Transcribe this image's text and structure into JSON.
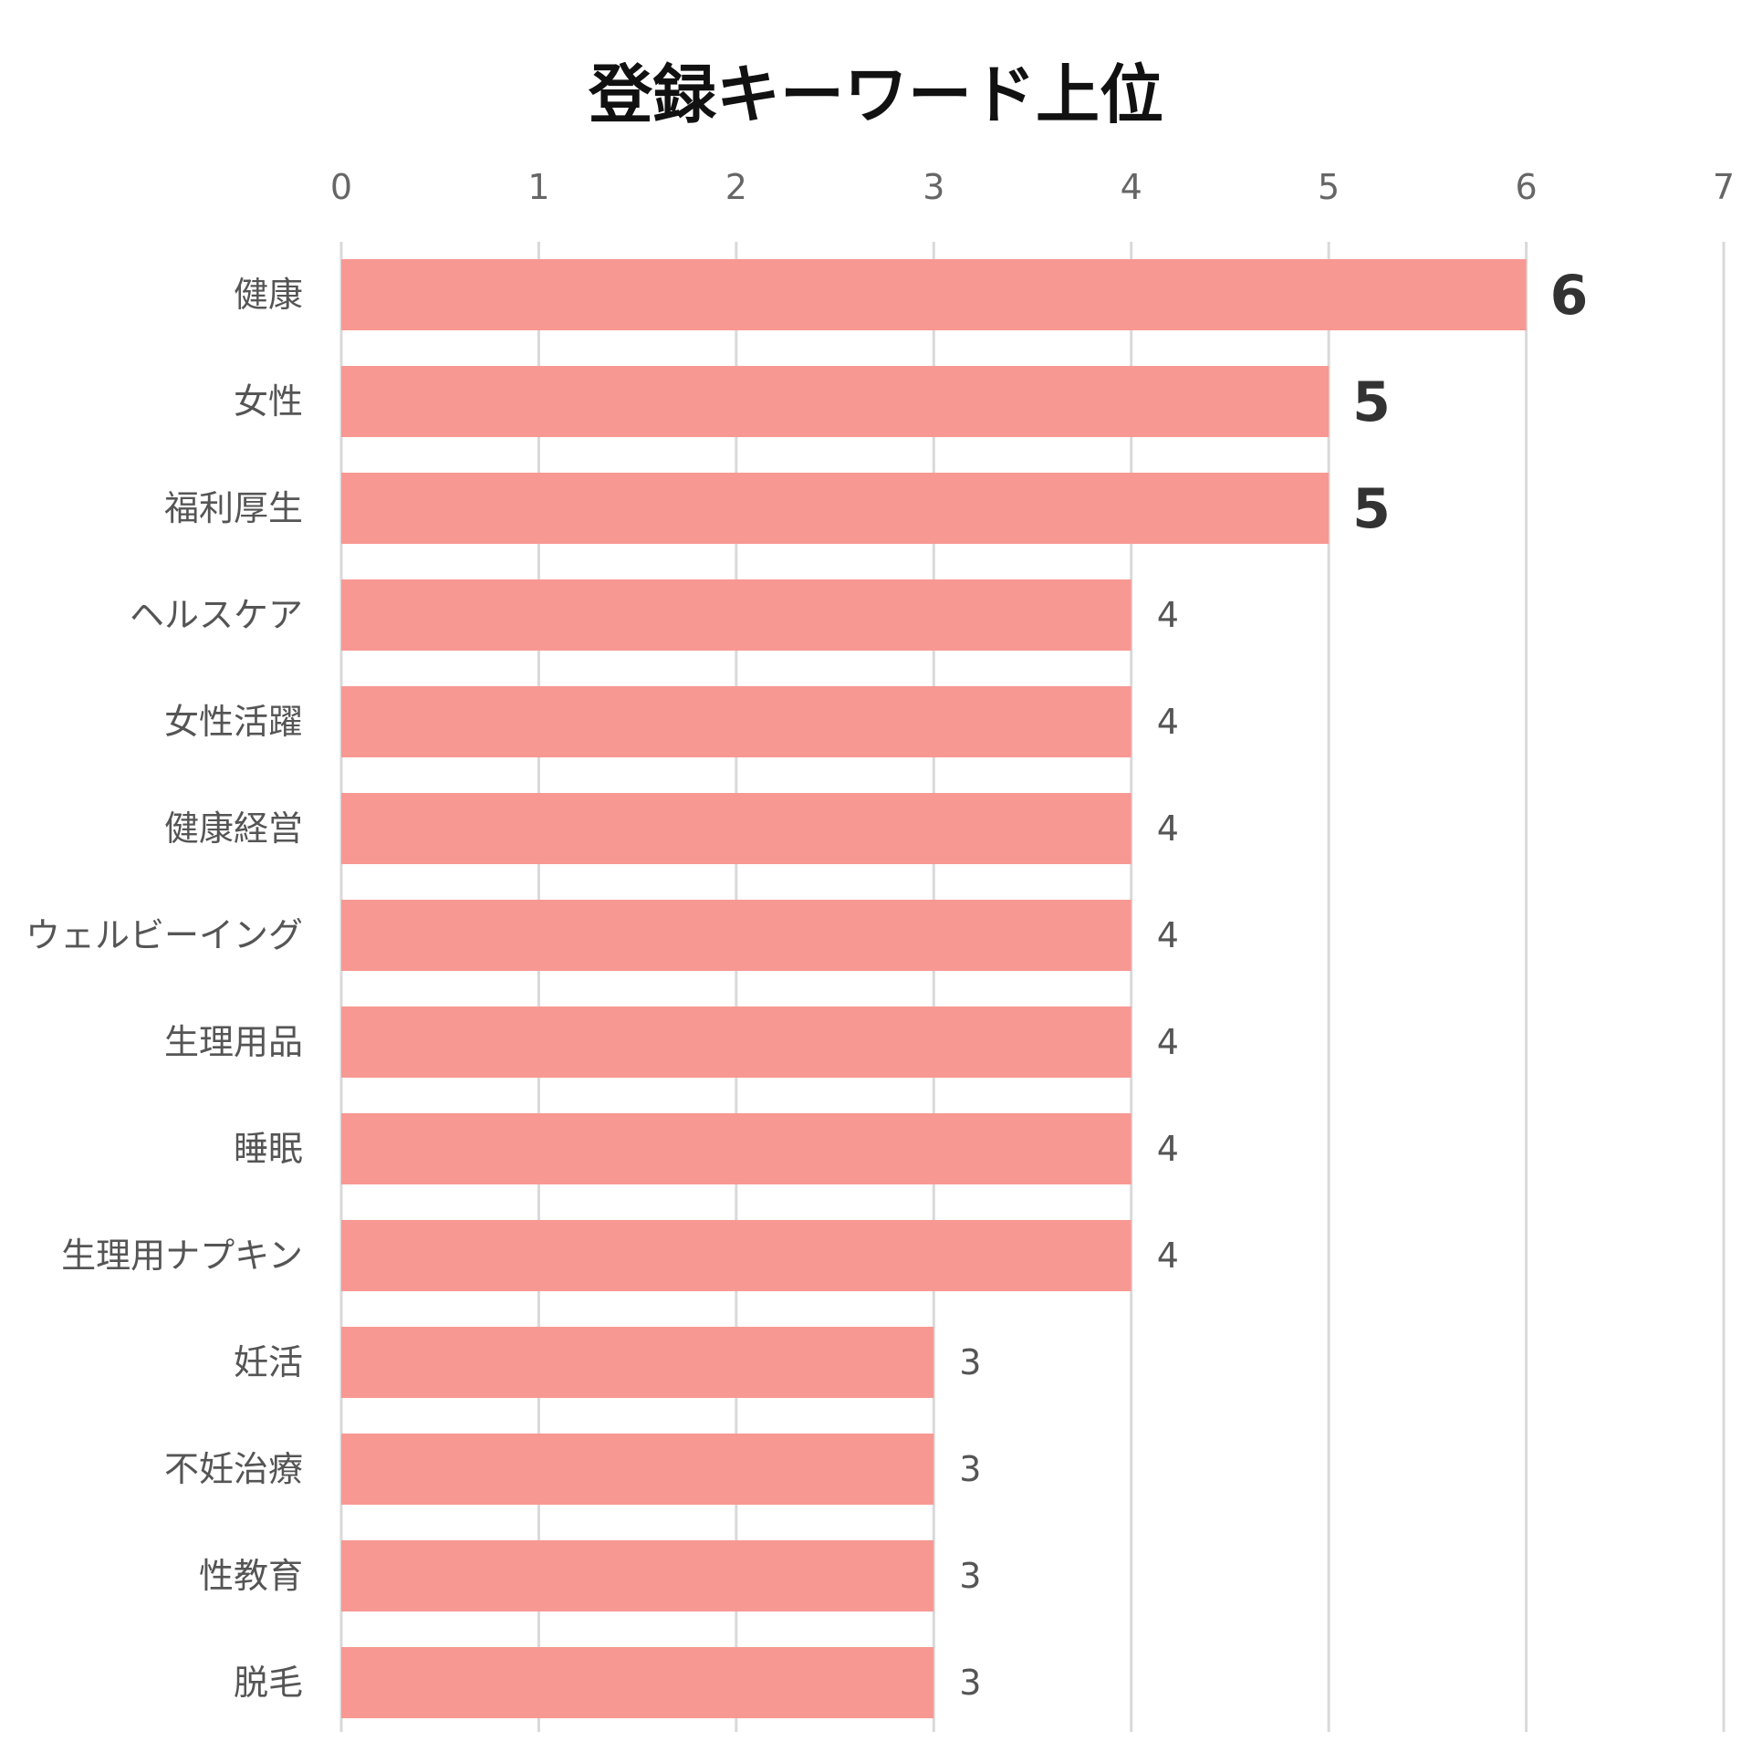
{
  "chart_data": {
    "type": "bar",
    "orientation": "horizontal",
    "title": "登録キーワード上位",
    "categories": [
      "健康",
      "女性",
      "福利厚生",
      "ヘルスケア",
      "女性活躍",
      "健康経営",
      "ウェルビーイング",
      "生理用品",
      "睡眠",
      "生理用ナプキン",
      "妊活",
      "不妊治療",
      "性教育",
      "脱毛"
    ],
    "values": [
      6,
      5,
      5,
      4,
      4,
      4,
      4,
      4,
      4,
      4,
      3,
      3,
      3,
      3
    ],
    "xlim": [
      0,
      7
    ],
    "x_ticks": [
      "0",
      "1",
      "2",
      "3",
      "4",
      "5",
      "6",
      "7"
    ],
    "x_axis_position": "top",
    "grid": true,
    "data_labels": [
      "6",
      "5",
      "5",
      "4",
      "4",
      "4",
      "4",
      "4",
      "4",
      "4",
      "3",
      "3",
      "3",
      "3"
    ],
    "bar_color": "#f89893",
    "grid_color": "#d9d9d9"
  }
}
